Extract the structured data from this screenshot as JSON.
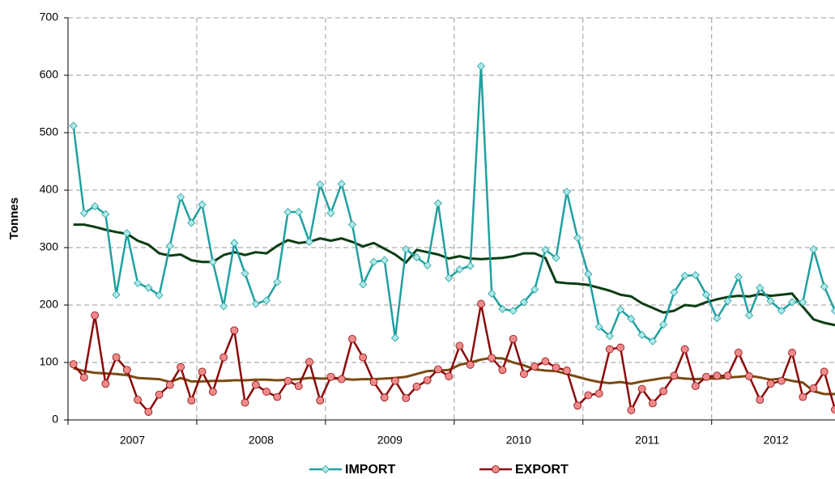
{
  "chart_data": {
    "type": "line",
    "ylabel": "Tonnes",
    "categories": [
      null,
      null,
      null,
      null,
      null,
      null,
      "2007",
      null,
      null,
      null,
      null,
      null,
      null,
      null,
      null,
      null,
      null,
      null,
      "2008",
      null,
      null,
      null,
      null,
      null,
      null,
      null,
      null,
      null,
      null,
      null,
      "2009",
      null,
      null,
      null,
      null,
      null,
      null,
      null,
      null,
      null,
      null,
      null,
      "2010",
      null,
      null,
      null,
      null,
      null,
      null,
      null,
      null,
      null,
      null,
      null,
      "2011",
      null,
      null,
      null,
      null,
      null,
      null,
      null,
      null,
      null,
      null,
      null,
      "2012",
      null,
      null,
      null,
      null,
      null
    ],
    "ylim": [
      0,
      700
    ],
    "yticks": [
      0,
      100,
      200,
      300,
      400,
      500,
      600,
      700
    ],
    "grid": true,
    "legend": "bottom",
    "series": [
      {
        "name": "IMPORT",
        "color": "#20a0a0",
        "marker": "diamond",
        "marker_color": "#b0e8e8",
        "values": [
          512,
          360,
          372,
          358,
          218,
          325,
          238,
          230,
          217,
          303,
          388,
          343,
          375,
          275,
          198,
          308,
          255,
          202,
          208,
          240,
          362,
          362,
          310,
          410,
          360,
          411,
          340,
          236,
          275,
          278,
          143,
          297,
          283,
          269,
          377,
          247,
          262,
          268,
          616,
          220,
          193,
          190,
          205,
          227,
          296,
          282,
          397,
          317,
          254,
          162,
          146,
          192,
          176,
          148,
          137,
          166,
          222,
          251,
          252,
          218,
          177,
          207,
          249,
          182,
          230,
          207,
          190,
          205,
          205,
          297,
          232,
          190
        ]
      },
      {
        "name": "EXPORT",
        "color": "#8b0a0a",
        "marker": "circle",
        "marker_color": "#f08a8a",
        "values": [
          97,
          74,
          182,
          63,
          109,
          87,
          35,
          14,
          44,
          61,
          92,
          34,
          84,
          49,
          109,
          156,
          30,
          61,
          49,
          40,
          68,
          59,
          101,
          34,
          75,
          71,
          141,
          109,
          66,
          39,
          68,
          38,
          58,
          69,
          88,
          76,
          129,
          96,
          202,
          108,
          87,
          141,
          80,
          93,
          102,
          91,
          86,
          25,
          43,
          46,
          123,
          126,
          17,
          54,
          29,
          50,
          77,
          123,
          59,
          75,
          77,
          77,
          117,
          76,
          35,
          63,
          68,
          117,
          40,
          55,
          84,
          18
        ]
      },
      {
        "color": "#0b3d14",
        "values": [
          340,
          340,
          336,
          331,
          327,
          324,
          312,
          305,
          290,
          286,
          288,
          278,
          275,
          275,
          287,
          292,
          287,
          292,
          290,
          303,
          313,
          308,
          310,
          316,
          312,
          316,
          310,
          302,
          308,
          298,
          288,
          274,
          296,
          292,
          288,
          281,
          285,
          281,
          280,
          281,
          282,
          285,
          290,
          290,
          282,
          240,
          238,
          237,
          235,
          230,
          225,
          218,
          215,
          203,
          195,
          187,
          190,
          200,
          198,
          205,
          210,
          214,
          216,
          215,
          219,
          216,
          218,
          220,
          197,
          175,
          169,
          165
        ]
      },
      {
        "color": "#7a4a12",
        "values": [
          90,
          85,
          82,
          81,
          80,
          78,
          73,
          72,
          71,
          66,
          73,
          67,
          67,
          68,
          68,
          69,
          69,
          70,
          70,
          69,
          70,
          71,
          73,
          72,
          72,
          72,
          70,
          71,
          71,
          72,
          73,
          75,
          80,
          85,
          86,
          87,
          96,
          100,
          105,
          108,
          107,
          100,
          95,
          88,
          86,
          85,
          80,
          75,
          70,
          66,
          64,
          66,
          63,
          67,
          70,
          73,
          74,
          72,
          71,
          72,
          72,
          74,
          75,
          77,
          74,
          70,
          72,
          68,
          65,
          50,
          45,
          45
        ]
      }
    ]
  }
}
